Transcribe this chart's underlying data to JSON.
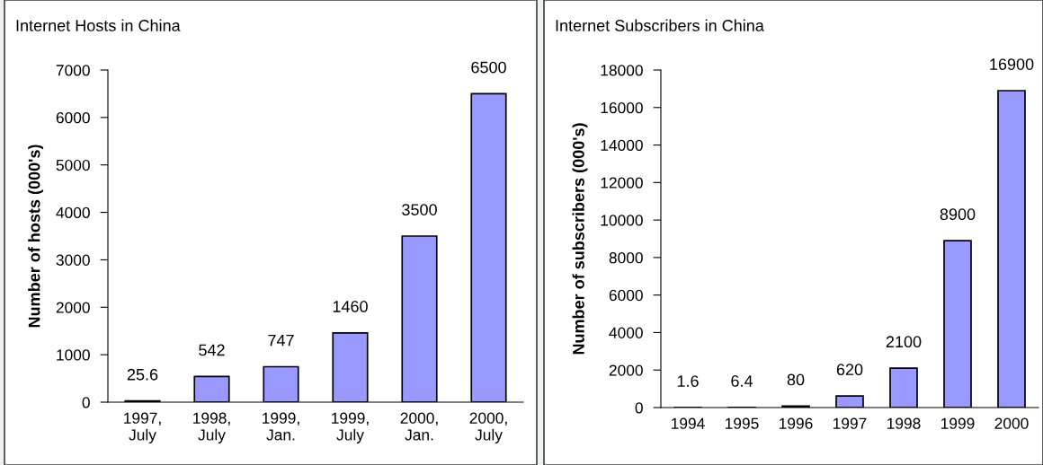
{
  "chart_data": [
    {
      "type": "bar",
      "title": "Internet Hosts in China",
      "ylabel": "Number of hosts (000's)",
      "categories": [
        "1997,\nJuly",
        "1998,\nJuly",
        "1999,\nJan.",
        "1999,\nJuly",
        "2000,\nJan.",
        "2000,\nJuly"
      ],
      "values": [
        25.6,
        542,
        747,
        1460,
        3500,
        6500
      ],
      "color": "#9999ff",
      "ylim": [
        0,
        7000
      ],
      "yticks": [
        0,
        1000,
        2000,
        3000,
        4000,
        5000,
        6000,
        7000
      ],
      "data_labels": true,
      "grid": false,
      "legend": false
    },
    {
      "type": "bar",
      "title": "Internet Subscribers in China",
      "ylabel": "Number of subscribers (000's)",
      "categories": [
        "1994",
        "1995",
        "1996",
        "1997",
        "1998",
        "1999",
        "2000"
      ],
      "values": [
        1.6,
        6.4,
        80,
        620,
        2100,
        8900,
        16900
      ],
      "color": "#9999ff",
      "ylim": [
        0,
        18000
      ],
      "yticks": [
        0,
        2000,
        4000,
        6000,
        8000,
        10000,
        12000,
        14000,
        16000,
        18000
      ],
      "data_labels": true,
      "grid": false,
      "legend": false
    }
  ]
}
